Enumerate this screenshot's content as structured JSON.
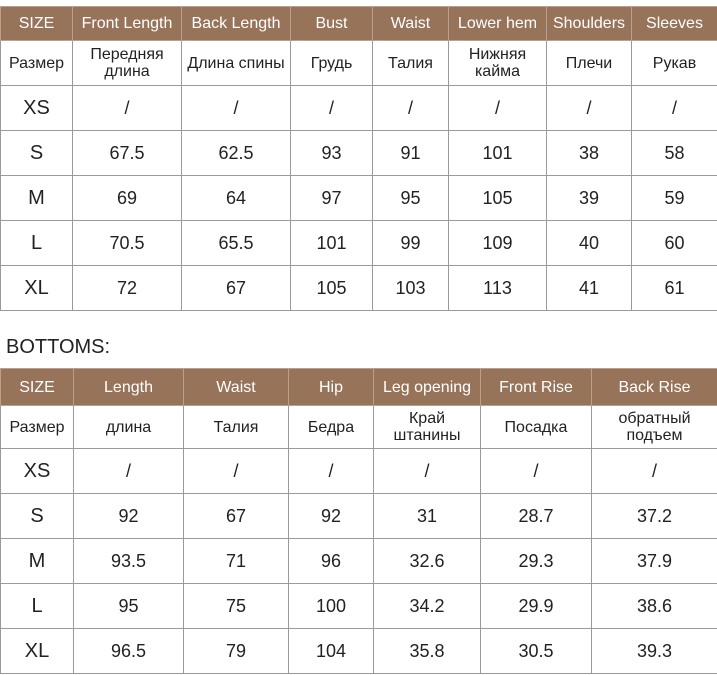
{
  "colors": {
    "header_bg": "#97735a",
    "header_text": "#ffffff"
  },
  "tops": {
    "headers": [
      "SIZE",
      "Front Length",
      "Back Length",
      "Bust",
      "Waist",
      "Lower hem",
      "Shoulders",
      "Sleeves"
    ],
    "subheaders": [
      "Размер",
      "Передняя длина",
      "Длина спины",
      "Грудь",
      "Талия",
      "Нижняя кайма",
      "Плечи",
      "Рукав"
    ],
    "rows": [
      [
        "XS",
        "/",
        "/",
        "/",
        "/",
        "/",
        "/",
        "/"
      ],
      [
        "S",
        "67.5",
        "62.5",
        "93",
        "91",
        "101",
        "38",
        "58"
      ],
      [
        "M",
        "69",
        "64",
        "97",
        "95",
        "105",
        "39",
        "59"
      ],
      [
        "L",
        "70.5",
        "65.5",
        "101",
        "99",
        "109",
        "40",
        "60"
      ],
      [
        "XL",
        "72",
        "67",
        "105",
        "103",
        "113",
        "41",
        "61"
      ]
    ]
  },
  "bottoms": {
    "title": "BOTTOMS:",
    "headers": [
      "SIZE",
      "Length",
      "Waist",
      "Hip",
      "Leg opening",
      "Front Rise",
      "Back Rise"
    ],
    "subheaders": [
      "Размер",
      "длина",
      "Талия",
      "Бедра",
      "Край штанины",
      "Посадка",
      "обратный подъем"
    ],
    "rows": [
      [
        "XS",
        "/",
        "/",
        "/",
        "/",
        "/",
        "/"
      ],
      [
        "S",
        "92",
        "67",
        "92",
        "31",
        "28.7",
        "37.2"
      ],
      [
        "M",
        "93.5",
        "71",
        "96",
        "32.6",
        "29.3",
        "37.9"
      ],
      [
        "L",
        "95",
        "75",
        "100",
        "34.2",
        "29.9",
        "38.6"
      ],
      [
        "XL",
        "96.5",
        "79",
        "104",
        "35.8",
        "30.5",
        "39.3"
      ]
    ]
  }
}
